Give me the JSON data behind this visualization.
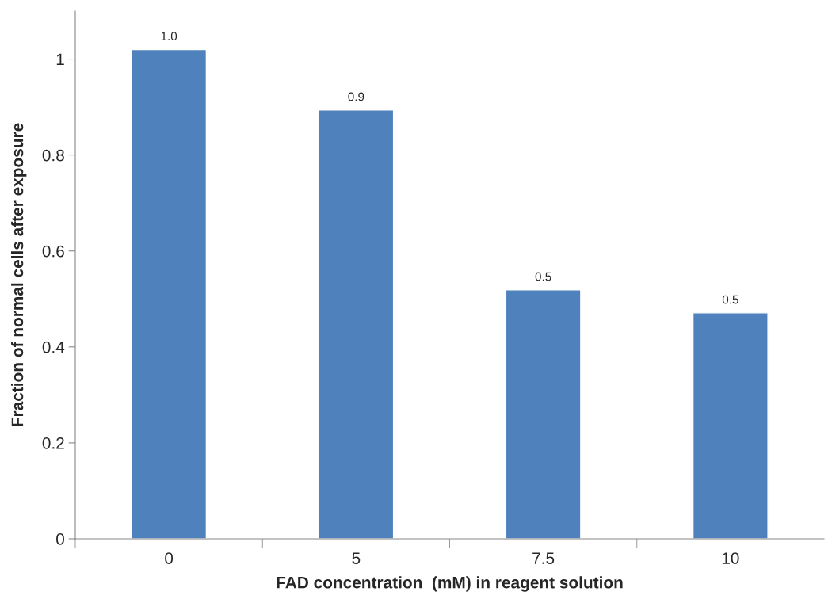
{
  "chart_data": {
    "type": "bar",
    "xlabel": "FAD concentration  (mM) in reagent solution",
    "ylabel": "Fraction of normal cells after exposure",
    "categories": [
      "0",
      "5",
      "7.5",
      "10"
    ],
    "values": [
      1.02,
      0.894,
      0.519,
      0.471
    ],
    "value_labels": [
      "1.0",
      "0.9",
      "0.5",
      "0.5"
    ],
    "color": "#4f81bd",
    "ylim": [
      0,
      1.1
    ],
    "yticks": [
      0,
      0.2,
      0.4,
      0.6,
      0.8,
      1
    ],
    "grid": false,
    "legend": false
  }
}
